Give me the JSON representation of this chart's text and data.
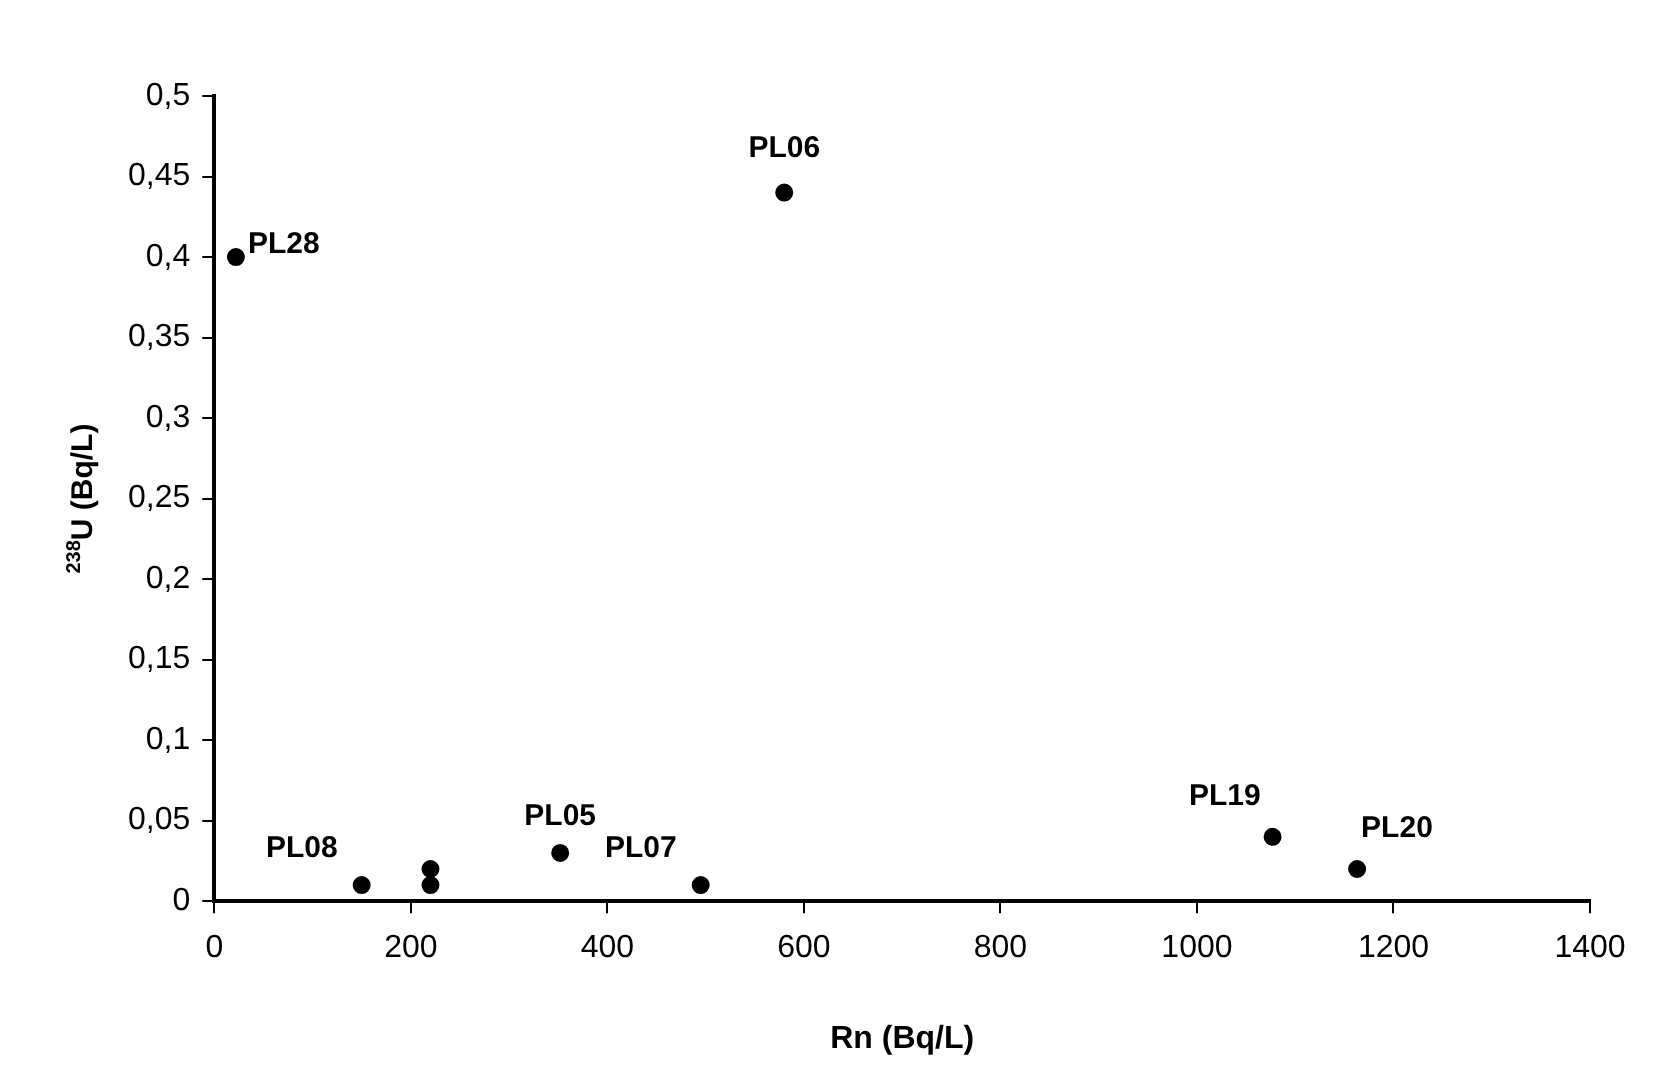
{
  "chart_data": {
    "type": "scatter",
    "xlabel": "Rn (Bq/L)",
    "ylabel": "$^{238}$U (Bq/L)",
    "x": [
      22,
      580,
      150,
      220,
      220,
      352,
      495,
      1077,
      1163
    ],
    "series": [
      {
        "color": "#000000",
        "values": [
          0.4,
          0.44,
          0.01,
          0.02,
          0.01,
          0.03,
          0.01,
          0.04,
          0.02
        ]
      }
    ],
    "xlim": [
      0,
      1400
    ],
    "xticks": [
      0,
      200,
      400,
      600,
      800,
      1000,
      1200,
      1400
    ],
    "ylim": [
      0,
      0.5
    ],
    "yticks": [
      {
        "value": 0,
        "label": "0"
      },
      {
        "value": 0.05,
        "label": "0,05"
      },
      {
        "value": 0.1,
        "label": "0,1"
      },
      {
        "value": 0.15,
        "label": "0,15"
      },
      {
        "value": 0.2,
        "label": "0,2"
      },
      {
        "value": 0.25,
        "label": "0,25"
      },
      {
        "value": 0.3,
        "label": "0,3"
      },
      {
        "value": 0.35,
        "label": "0,35"
      },
      {
        "value": 0.4,
        "label": "0,4"
      },
      {
        "value": 0.45,
        "label": "0,45"
      },
      {
        "value": 0.5,
        "label": "0,5"
      }
    ],
    "annotations": [
      {
        "text": "PL28",
        "x": 22,
        "y": 0.4
      },
      {
        "text": "PL06",
        "x": 580,
        "y": 0.44
      },
      {
        "text": "PL08",
        "x": 150,
        "y": 0.01
      },
      {
        "text": "PL05",
        "x": 352,
        "y": 0.03
      },
      {
        "text": "PL07",
        "x": 495,
        "y": 0.01
      },
      {
        "text": "PL19",
        "x": 1077,
        "y": 0.04
      },
      {
        "text": "PL20",
        "x": 1163,
        "y": 0.02
      }
    ],
    "grid": false,
    "legend": false,
    "marker": "circle"
  }
}
